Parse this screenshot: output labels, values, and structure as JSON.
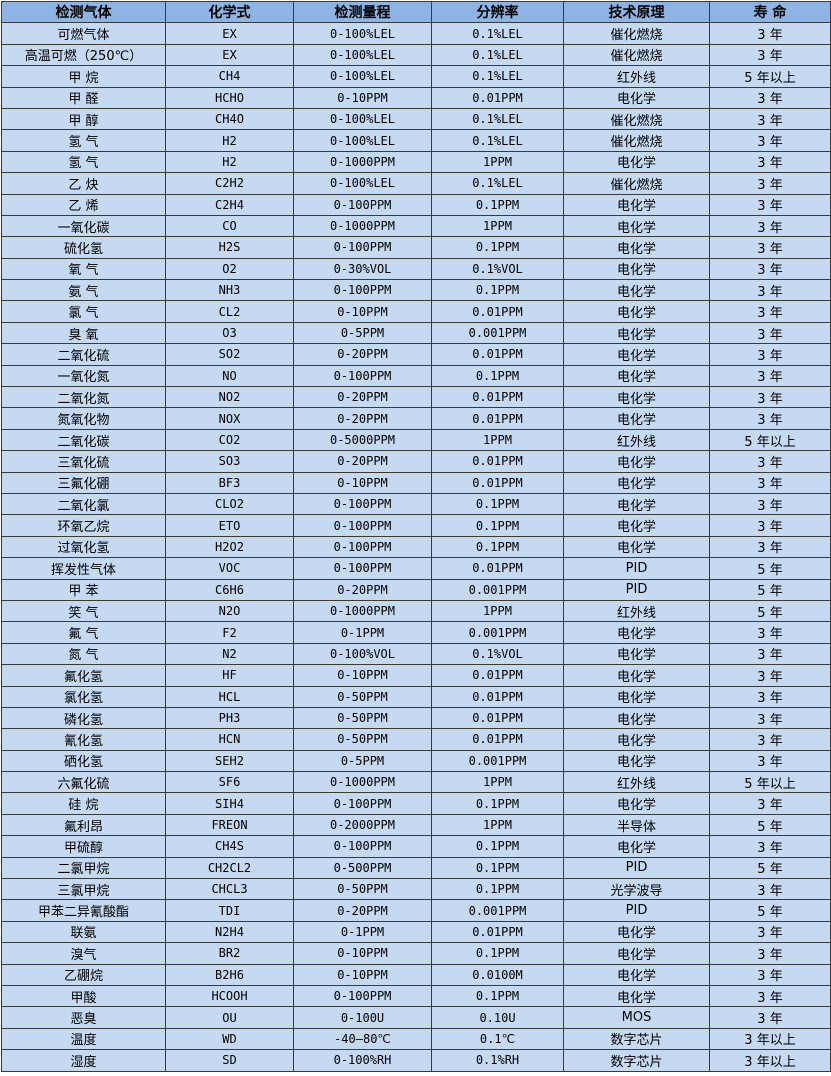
{
  "colors": {
    "header_bg": "#8db4e2",
    "row_bg": "#c5d9f1"
  },
  "headers": [
    "检测气体",
    "化学式",
    "检测量程",
    "分辨率",
    "技术原理",
    "寿 命"
  ],
  "rows": [
    [
      "可燃气体",
      "EX",
      "0-100%LEL",
      "0.1%LEL",
      "催化燃烧",
      "3 年"
    ],
    [
      "高温可燃（250℃）",
      "EX",
      "0-100%LEL",
      "0.1%LEL",
      "催化燃烧",
      "3 年"
    ],
    [
      "甲 烷",
      "CH4",
      "0-100%LEL",
      "0.1%LEL",
      "红外线",
      "5 年以上"
    ],
    [
      "甲 醛",
      "HCHO",
      "0-10PPM",
      "0.01PPM",
      "电化学",
      "3 年"
    ],
    [
      "甲 醇",
      "CH4O",
      "0-100%LEL",
      "0.1%LEL",
      "催化燃烧",
      "3 年"
    ],
    [
      "氢 气",
      "H2",
      "0-100%LEL",
      "0.1%LEL",
      "催化燃烧",
      "3 年"
    ],
    [
      "氢 气",
      "H2",
      "0-1000PPM",
      "1PPM",
      "电化学",
      "3 年"
    ],
    [
      "乙 炔",
      "C2H2",
      "0-100%LEL",
      "0.1%LEL",
      "催化燃烧",
      "3 年"
    ],
    [
      "乙 烯",
      "C2H4",
      "0-100PPM",
      "0.1PPM",
      "电化学",
      "3 年"
    ],
    [
      "一氧化碳",
      "CO",
      "0-1000PPM",
      "1PPM",
      "电化学",
      "3 年"
    ],
    [
      "硫化氢",
      "H2S",
      "0-100PPM",
      "0.1PPM",
      "电化学",
      "3 年"
    ],
    [
      "氧 气",
      "O2",
      "0-30%VOL",
      "0.1%VOL",
      "电化学",
      "3 年"
    ],
    [
      "氨 气",
      "NH3",
      "0-100PPM",
      "0.1PPM",
      "电化学",
      "3 年"
    ],
    [
      "氯 气",
      "CL2",
      "0-10PPM",
      "0.01PPM",
      "电化学",
      "3 年"
    ],
    [
      "臭 氧",
      "O3",
      "0-5PPM",
      "0.001PPM",
      "电化学",
      "3 年"
    ],
    [
      "二氧化硫",
      "SO2",
      "0-20PPM",
      "0.01PPM",
      "电化学",
      "3 年"
    ],
    [
      "一氧化氮",
      "NO",
      "0-100PPM",
      "0.1PPM",
      "电化学",
      "3 年"
    ],
    [
      "二氧化氮",
      "NO2",
      "0-20PPM",
      "0.01PPM",
      "电化学",
      "3 年"
    ],
    [
      "氮氧化物",
      "NOX",
      "0-20PPM",
      "0.01PPM",
      "电化学",
      "3 年"
    ],
    [
      "二氧化碳",
      "CO2",
      "0-5000PPM",
      "1PPM",
      "红外线",
      "5 年以上"
    ],
    [
      "三氧化硫",
      "SO3",
      "0-20PPM",
      "0.01PPM",
      "电化学",
      "3 年"
    ],
    [
      "三氟化硼",
      "BF3",
      "0-10PPM",
      "0.01PPM",
      "电化学",
      "3 年"
    ],
    [
      "二氧化氯",
      "CLO2",
      "0-100PPM",
      "0.1PPM",
      "电化学",
      "3 年"
    ],
    [
      "环氧乙烷",
      "ETO",
      "0-100PPM",
      "0.1PPM",
      "电化学",
      "3 年"
    ],
    [
      "过氧化氢",
      "H2O2",
      "0-100PPM",
      "0.1PPM",
      "电化学",
      "3 年"
    ],
    [
      "挥发性气体",
      "VOC",
      "0-100PPM",
      "0.01PPM",
      "PID",
      "5 年"
    ],
    [
      "甲 苯",
      "C6H6",
      "0-20PPM",
      "0.001PPM",
      "PID",
      "5 年"
    ],
    [
      "笑 气",
      "N2O",
      "0-1000PPM",
      "1PPM",
      "红外线",
      "5 年"
    ],
    [
      "氟 气",
      "F2",
      "0-1PPM",
      "0.001PPM",
      "电化学",
      "3 年"
    ],
    [
      "氮 气",
      "N2",
      "0-100%VOL",
      "0.1%VOL",
      "电化学",
      "3 年"
    ],
    [
      "氟化氢",
      "HF",
      "0-10PPM",
      "0.01PPM",
      "电化学",
      "3 年"
    ],
    [
      "氯化氢",
      "HCL",
      "0-50PPM",
      "0.01PPM",
      "电化学",
      "3 年"
    ],
    [
      "磷化氢",
      "PH3",
      "0-50PPM",
      "0.01PPM",
      "电化学",
      "3 年"
    ],
    [
      "氰化氢",
      "HCN",
      "0-50PPM",
      "0.01PPM",
      "电化学",
      "3 年"
    ],
    [
      "硒化氢",
      "SEH2",
      "0-5PPM",
      "0.001PPM",
      "电化学",
      "3 年"
    ],
    [
      "六氟化硫",
      "SF6",
      "0-1000PPM",
      "1PPM",
      "红外线",
      "5 年以上"
    ],
    [
      "硅 烷",
      "SIH4",
      "0-100PPM",
      "0.1PPM",
      "电化学",
      "3 年"
    ],
    [
      "氟利昂",
      "FREON",
      "0-2000PPM",
      "1PPM",
      "半导体",
      "5 年"
    ],
    [
      "甲硫醇",
      "CH4S",
      "0-100PPM",
      "0.1PPM",
      "电化学",
      "3 年"
    ],
    [
      "二氯甲烷",
      "CH2CL2",
      "0-500PPM",
      "0.1PPM",
      "PID",
      "5 年"
    ],
    [
      "三氯甲烷",
      "CHCL3",
      "0-50PPM",
      "0.1PPM",
      "光学波导",
      "3 年"
    ],
    [
      "甲苯二异氰酸酯",
      "TDI",
      "0-20PPM",
      "0.001PPM",
      "PID",
      "5 年"
    ],
    [
      "联氨",
      "N2H4",
      "0-1PPM",
      "0.01PPM",
      "电化学",
      "3 年"
    ],
    [
      "溴气",
      "BR2",
      "0-10PPM",
      "0.1PPM",
      "电化学",
      "3 年"
    ],
    [
      "乙硼烷",
      "B2H6",
      "0-10PPM",
      "0.0100M",
      "电化学",
      "3 年"
    ],
    [
      "甲酸",
      "HCOOH",
      "0-100PPM",
      "0.1PPM",
      "电化学",
      "3 年"
    ],
    [
      "恶臭",
      "OU",
      "0-100U",
      "0.10U",
      "MOS",
      "3 年"
    ],
    [
      "温度",
      "WD",
      "-40—80℃",
      "0.1℃",
      "数字芯片",
      "3 年以上"
    ],
    [
      "湿度",
      "SD",
      "0-100%RH",
      "0.1%RH",
      "数字芯片",
      "3 年以上"
    ]
  ]
}
